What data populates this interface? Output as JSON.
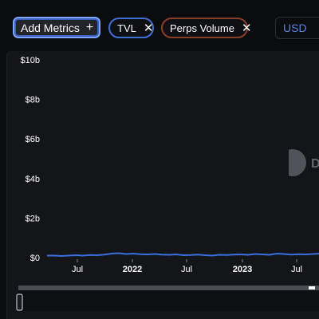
{
  "toolbar": {
    "add_metrics_label": "Add Metrics",
    "add_metrics_icon": "plus-icon",
    "metrics": [
      {
        "label": "TVL",
        "remove_icon": "close-icon",
        "border_color": "#3f6fd6"
      },
      {
        "label": "Perps Volume",
        "remove_icon": "close-icon",
        "border_color": "#8a3d28"
      }
    ],
    "currency_label": "USD"
  },
  "chart_data": {
    "type": "line",
    "y_ticks": [
      "$10b",
      "$8b",
      "$6b",
      "$4b",
      "$2b",
      "$0"
    ],
    "ylim": [
      0,
      10
    ],
    "x_ticks": [
      {
        "label": "Jul",
        "bold": false
      },
      {
        "label": "2022",
        "bold": true
      },
      {
        "label": "Jul",
        "bold": false
      },
      {
        "label": "2023",
        "bold": true
      },
      {
        "label": "Jul",
        "bold": false
      }
    ],
    "series": [
      {
        "color": "#3a6fe0",
        "values": [
          0.1,
          0.1,
          0.08,
          0.1,
          0.12,
          0.1,
          0.13,
          0.12,
          0.15,
          0.2,
          0.22,
          0.18,
          0.2,
          0.17,
          0.16,
          0.18,
          0.15,
          0.14,
          0.16,
          0.12,
          0.13,
          0.15,
          0.12,
          0.1,
          0.14,
          0.13,
          0.15,
          0.16,
          0.14,
          0.18,
          0.16,
          0.14,
          0.2,
          0.18,
          0.15,
          0.17,
          0.16,
          0.18,
          0.2
        ]
      }
    ],
    "watermark_letter": "D",
    "grid": false
  }
}
